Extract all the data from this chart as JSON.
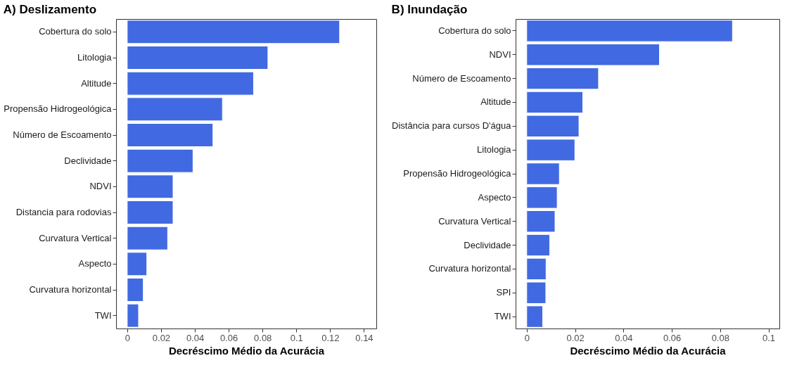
{
  "chart_data": [
    {
      "type": "bar",
      "orientation": "horizontal",
      "title": "A) Deslizamento",
      "xlabel": "Decréscimo Médio da Acurácia",
      "categories": [
        "Cobertura do solo",
        "Litologia",
        "Altitude",
        "Propensão Hidrogeológica",
        "Número de Escoamento",
        "Declividade",
        "NDVI",
        "Distancia para rodovias",
        "Curvatura Vertical",
        "Aspecto",
        "Curvatura horizontal",
        "TWI"
      ],
      "values": [
        0.1256,
        0.0832,
        0.0747,
        0.0563,
        0.0507,
        0.0389,
        0.0271,
        0.0271,
        0.0239,
        0.0116,
        0.0095,
        0.0067
      ],
      "color": "#4169e1",
      "xlim": [
        -0.0066,
        0.1473
      ],
      "xticks": [
        0,
        0.02,
        0.04,
        0.06,
        0.08,
        0.1,
        0.12,
        0.14
      ],
      "grid": false
    },
    {
      "type": "bar",
      "orientation": "horizontal",
      "title": "B) Inundação",
      "xlabel": "Decréscimo Médio da Acurácia",
      "categories": [
        "Cobertura do solo",
        "NDVI",
        "Número de Escoamento",
        "Altitude",
        "Distância para cursos D'água",
        "Litologia",
        "Propensão Hidrogeológica",
        "Aspecto",
        "Curvatura Vertical",
        "Declividade",
        "Curvatura horizontal",
        "SPI",
        "TWI"
      ],
      "values": [
        0.0851,
        0.0549,
        0.0297,
        0.0232,
        0.0216,
        0.0199,
        0.0135,
        0.0126,
        0.0117,
        0.0095,
        0.008,
        0.0079,
        0.0066
      ],
      "color": "#4169e1",
      "xlim": [
        -0.0046,
        0.1045
      ],
      "xticks": [
        0,
        0.02,
        0.04,
        0.06,
        0.08,
        0.1
      ],
      "grid": false
    }
  ]
}
